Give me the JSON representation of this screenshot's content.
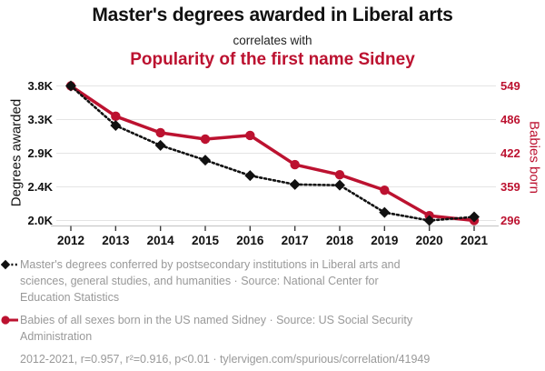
{
  "header": {
    "title": "Master's degrees awarded in Liberal arts",
    "connector": "correlates with",
    "subtitle": "Popularity of the first name Sidney"
  },
  "chart_data": {
    "type": "line",
    "title": "Master's degrees awarded in Liberal arts",
    "subtitle_connector": "correlates with",
    "subtitle": "Popularity of the first name Sidney",
    "x": [
      2012,
      2013,
      2014,
      2015,
      2016,
      2017,
      2018,
      2019,
      2020,
      2021
    ],
    "x_tick_labels": [
      "2012",
      "2013",
      "2014",
      "2015",
      "2016",
      "2017",
      "2018",
      "2019",
      "2020",
      "2021"
    ],
    "series": [
      {
        "name": "Master's degrees conferred by postsecondary institutions in Liberal arts and sciences, general studies, and humanities",
        "axis": "left",
        "color": "#111111",
        "line_style": "dotted",
        "marker": "diamond",
        "values": [
          3797,
          3260,
          2990,
          2790,
          2580,
          2460,
          2450,
          2080,
          1971,
          2020
        ]
      },
      {
        "name": "Babies of all sexes born in the US named Sidney",
        "axis": "right",
        "color": "#bc1230",
        "line_style": "solid",
        "marker": "circle",
        "values": [
          549,
          492,
          461,
          449,
          456,
          401,
          382,
          353,
          305,
          296
        ]
      }
    ],
    "left_axis": {
      "label": "Degrees awarded",
      "min": 1971,
      "max": 3797,
      "tick_labels": [
        "3.8K",
        "3.3K",
        "2.9K",
        "2.4K",
        "2.0K"
      ]
    },
    "right_axis": {
      "label": "Babies born",
      "min": 296,
      "max": 549,
      "tick_labels": [
        "549",
        "486",
        "422",
        "359",
        "296"
      ]
    },
    "grid": true,
    "legend_position": "bottom"
  },
  "legend": {
    "entries": [
      {
        "marker": "black-diamond-dotted",
        "label_lines": [
          "Master's degrees conferred by postsecondary institutions in Liberal arts and",
          "sciences, general studies, and humanities · Source: National Center for",
          "Education Statistics"
        ]
      },
      {
        "marker": "red-circle-solid",
        "label_lines": [
          "Babies of all sexes born in the US named Sidney · Source: US Social Security",
          "Administration"
        ]
      }
    ],
    "footnote": "2012-2021, r=0.957, r²=0.916, p<0.01 · tylervigen.com/spurious/correlation/41949"
  },
  "colors": {
    "accent_red": "#bc1230",
    "series_black": "#111111",
    "legend_gray": "#999999",
    "gridline": "#e4e4e4",
    "axis_line": "#c9c9c9"
  }
}
